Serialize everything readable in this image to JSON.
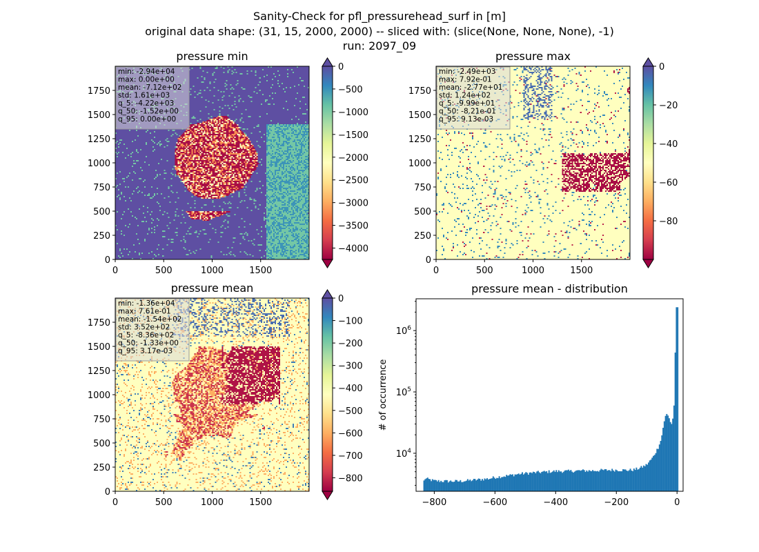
{
  "suptitle": [
    "Sanity-Check for pfl_pressurehead_surf in [m]",
    "original data shape: (31, 15, 2000, 2000) -- sliced with: (slice(None, None, None), -1)",
    "run: 2097_09"
  ],
  "colors": {
    "spectral": [
      "#9e0142",
      "#d53e4f",
      "#f46d43",
      "#fdae61",
      "#fee08b",
      "#ffffbf",
      "#e6f598",
      "#abdda4",
      "#66c2a5",
      "#3288bd",
      "#5e4fa2"
    ],
    "hist_bar": "#1f77b4"
  },
  "chart_data": [
    {
      "type": "heatmap",
      "title": "pressure min",
      "x_ticks": [
        "0",
        "500",
        "1000",
        "1500"
      ],
      "x_tick_values": [
        0,
        500,
        1000,
        1500
      ],
      "y_ticks": [
        "0",
        "250",
        "500",
        "750",
        "1000",
        "1250",
        "1500",
        "1750"
      ],
      "y_tick_values": [
        0,
        250,
        500,
        750,
        1000,
        1250,
        1500,
        1750
      ],
      "xlim": [
        0,
        2000
      ],
      "ylim": [
        0,
        2000
      ],
      "colorbar": {
        "vmin": -4250,
        "vmax": 0,
        "ticks": [
          "0",
          "−500",
          "−1000",
          "−1500",
          "−2000",
          "−2500",
          "−3000",
          "−3500",
          "−4000"
        ],
        "tick_values": [
          0,
          -500,
          -1000,
          -1500,
          -2000,
          -2500,
          -3000,
          -3500,
          -4000
        ],
        "extend": "both"
      },
      "stats": [
        "min: -2.94e+04",
        "max: 0.00e+00",
        "mean: -7.12e+02",
        "std: 1.61e+03",
        "q_5: -4.22e+03",
        "q_50: -1.52e+00",
        "q_95: 0.00e+00"
      ]
    },
    {
      "type": "heatmap",
      "title": "pressure max",
      "x_ticks": [
        "0",
        "500",
        "1000",
        "1500"
      ],
      "x_tick_values": [
        0,
        500,
        1000,
        1500
      ],
      "y_ticks": [
        "0",
        "250",
        "500",
        "750",
        "1000",
        "1250",
        "1500",
        "1750"
      ],
      "y_tick_values": [
        0,
        250,
        500,
        750,
        1000,
        1250,
        1500,
        1750
      ],
      "xlim": [
        0,
        2000
      ],
      "ylim": [
        0,
        2000
      ],
      "colorbar": {
        "vmin": -100,
        "vmax": 0,
        "ticks": [
          "0",
          "−20",
          "−40",
          "−60",
          "−80"
        ],
        "tick_values": [
          0,
          -20,
          -40,
          -60,
          -80
        ],
        "extend": "both"
      },
      "stats": [
        "min: -2.49e+03",
        "max: 7.92e-01",
        "mean: -2.77e+01",
        "std: 1.24e+02",
        "q_5: -9.99e+01",
        "q_50: -8.21e-01",
        "q_95: 9.13e-03"
      ]
    },
    {
      "type": "heatmap",
      "title": "pressure mean",
      "x_ticks": [
        "0",
        "500",
        "1000",
        "1500"
      ],
      "x_tick_values": [
        0,
        500,
        1000,
        1500
      ],
      "y_ticks": [
        "0",
        "250",
        "500",
        "750",
        "1000",
        "1250",
        "1500",
        "1750"
      ],
      "y_tick_values": [
        0,
        250,
        500,
        750,
        1000,
        1250,
        1500,
        1750
      ],
      "xlim": [
        0,
        2000
      ],
      "ylim": [
        0,
        2000
      ],
      "colorbar": {
        "vmin": -860,
        "vmax": 0,
        "ticks": [
          "0",
          "−100",
          "−200",
          "−300",
          "−400",
          "−500",
          "−600",
          "−700",
          "−800"
        ],
        "tick_values": [
          0,
          -100,
          -200,
          -300,
          -400,
          -500,
          -600,
          -700,
          -800
        ],
        "extend": "both"
      },
      "stats": [
        "min: -1.36e+04",
        "max: 7.61e-01",
        "mean: -1.54e+02",
        "std: 3.52e+02",
        "q_5: -8.36e+02",
        "q_50: -1.33e+00",
        "q_95: 3.17e-03"
      ]
    },
    {
      "type": "bar",
      "title": "pressure mean - distribution",
      "ylabel": "# of occurrence",
      "xlabel": "",
      "yscale": "log",
      "xlim": [
        -860,
        20
      ],
      "ylim": [
        2400,
        3300000
      ],
      "x_ticks": [
        "−800",
        "−600",
        "−400",
        "−200",
        "0"
      ],
      "x_tick_values": [
        -800,
        -600,
        -400,
        -200,
        0
      ],
      "y_ticks": [
        "10^4",
        "10^5",
        "10^6"
      ],
      "y_tick_values": [
        10000,
        100000,
        1000000
      ],
      "bins": {
        "start": -836,
        "width": 4,
        "count": 210
      },
      "profile_points": [
        [
          -836,
          3200
        ],
        [
          -832,
          3900
        ],
        [
          -800,
          3550
        ],
        [
          -760,
          3500
        ],
        [
          -720,
          3500
        ],
        [
          -700,
          3550
        ],
        [
          -660,
          3700
        ],
        [
          -620,
          3850
        ],
        [
          -600,
          4050
        ],
        [
          -560,
          4300
        ],
        [
          -520,
          4600
        ],
        [
          -480,
          4800
        ],
        [
          -440,
          4950
        ],
        [
          -400,
          5100
        ],
        [
          -360,
          5100
        ],
        [
          -320,
          5200
        ],
        [
          -280,
          5200
        ],
        [
          -240,
          5300
        ],
        [
          -200,
          5350
        ],
        [
          -160,
          5300
        ],
        [
          -140,
          5400
        ],
        [
          -120,
          5800
        ],
        [
          -100,
          6500
        ],
        [
          -80,
          8500
        ],
        [
          -60,
          13000
        ],
        [
          -52,
          17000
        ],
        [
          -44,
          30000
        ],
        [
          -36,
          45000
        ],
        [
          -28,
          40000
        ],
        [
          -20,
          30000
        ],
        [
          -16,
          30000
        ],
        [
          -12,
          45000
        ],
        [
          -8,
          80000
        ],
        [
          -4,
          2400000
        ],
        [
          0,
          2400000
        ]
      ]
    }
  ]
}
